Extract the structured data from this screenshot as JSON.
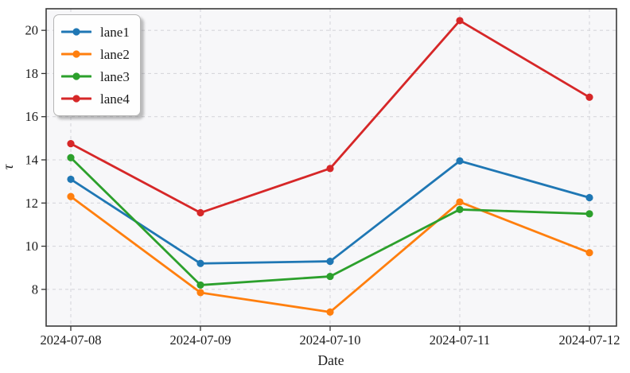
{
  "figure": {
    "background_color": "#ffffff",
    "plot_background_color": "#f7f7f9",
    "grid_color": "#d7d7dc",
    "spine_color": "#3a3a3a",
    "tick_color": "#333333",
    "text_color": "#1a1a1a"
  },
  "chart_data": {
    "type": "line",
    "title": "",
    "xlabel": "Date",
    "ylabel": "τ",
    "grid": true,
    "grid_style": "dashed",
    "legend_position": "upper-left",
    "categories": [
      "2024-07-08",
      "2024-07-09",
      "2024-07-10",
      "2024-07-11",
      "2024-07-12"
    ],
    "y_ticks": [
      8,
      10,
      12,
      14,
      16,
      18,
      20
    ],
    "ylim": [
      6.3,
      21.0
    ],
    "marker": "circle",
    "series": [
      {
        "name": "lane1",
        "color": "#1f77b4",
        "values": [
          13.1,
          9.2,
          9.3,
          13.95,
          12.25
        ]
      },
      {
        "name": "lane2",
        "color": "#ff7f0e",
        "values": [
          12.3,
          7.85,
          6.95,
          12.05,
          9.7
        ]
      },
      {
        "name": "lane3",
        "color": "#2ca02c",
        "values": [
          14.1,
          8.2,
          8.6,
          11.7,
          11.5
        ]
      },
      {
        "name": "lane4",
        "color": "#d62728",
        "values": [
          14.75,
          11.55,
          13.6,
          20.45,
          16.9
        ]
      }
    ]
  }
}
